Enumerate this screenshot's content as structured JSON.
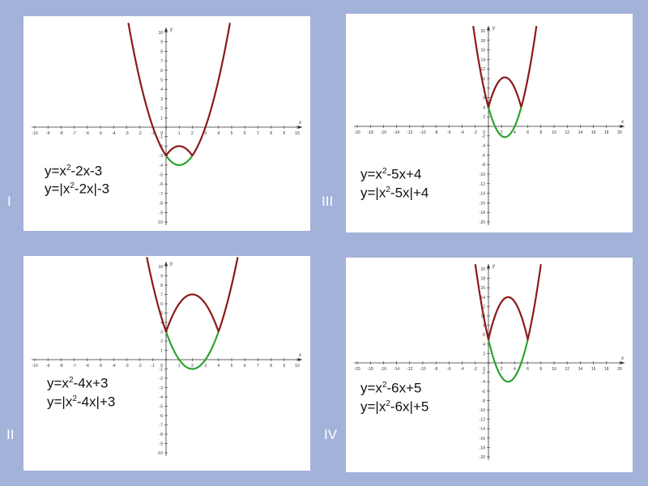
{
  "colors": {
    "background": "#a3b2d9",
    "panel": "#ffffff",
    "parabola": "#8b1a1a",
    "reflected": "#2ea32e",
    "axis": "#333333",
    "roman": "#ffffff"
  },
  "chart_data": [
    {
      "type": "line",
      "roman": "I",
      "axis_label_y": "y",
      "axis_label_x": "x",
      "xlim": [
        -10,
        10
      ],
      "ylim": [
        -10,
        10
      ],
      "tick_step": 1,
      "coeffs": {
        "a": 1,
        "b": -2,
        "c": -3
      },
      "equation_1": {
        "prefix": "y=x",
        "sup": "2",
        "suffix": "-2x-3"
      },
      "equation_2": {
        "prefix": "y=|x",
        "sup": "2",
        "suffix": "-2x|-3"
      },
      "series": [
        {
          "formula": "y=x²-2x-3",
          "color": "#8b1a1a"
        },
        {
          "formula": "y=|x²-2x|-3",
          "color": "#2ea32e"
        }
      ]
    },
    {
      "type": "line",
      "roman": "II",
      "axis_label_y": "y",
      "axis_label_x": "x",
      "xlim": [
        -10,
        10
      ],
      "ylim": [
        -10,
        10
      ],
      "tick_step": 1,
      "coeffs": {
        "a": 1,
        "b": -4,
        "c": 3
      },
      "equation_1": {
        "prefix": "y=x",
        "sup": "2",
        "suffix": "-4x+3"
      },
      "equation_2": {
        "prefix": "y=|x",
        "sup": "2",
        "suffix": "-4x|+3"
      },
      "series": [
        {
          "formula": "y=x²-4x+3",
          "color": "#8b1a1a"
        },
        {
          "formula": "y=|x²-4x|+3",
          "color": "#2ea32e"
        }
      ]
    },
    {
      "type": "line",
      "roman": "III",
      "axis_label_y": "y",
      "axis_label_x": "x",
      "xlim": [
        -20,
        20
      ],
      "ylim": [
        -20,
        20
      ],
      "tick_step": 2,
      "coeffs": {
        "a": 1,
        "b": -5,
        "c": 4
      },
      "equation_1": {
        "prefix": "y=x",
        "sup": "2",
        "suffix": "-5x+4"
      },
      "equation_2": {
        "prefix": "y=|x",
        "sup": "2",
        "suffix": "-5x|+4"
      },
      "series": [
        {
          "formula": "y=x²-5x+4",
          "color": "#8b1a1a"
        },
        {
          "formula": "y=|x²-5x|+4",
          "color": "#2ea32e"
        }
      ]
    },
    {
      "type": "line",
      "roman": "IV",
      "axis_label_y": "y",
      "axis_label_x": "x",
      "xlim": [
        -20,
        20
      ],
      "ylim": [
        -20,
        20
      ],
      "tick_step": 2,
      "coeffs": {
        "a": 1,
        "b": -6,
        "c": 5
      },
      "equation_1": {
        "prefix": "y=x",
        "sup": "2",
        "suffix": "-6x+5"
      },
      "equation_2": {
        "prefix": "y=|x",
        "sup": "2",
        "suffix": "-6x|+5"
      },
      "series": [
        {
          "formula": "y=x²-6x+5",
          "color": "#8b1a1a"
        },
        {
          "formula": "y=|x²-6x|+5",
          "color": "#2ea32e"
        }
      ]
    }
  ]
}
